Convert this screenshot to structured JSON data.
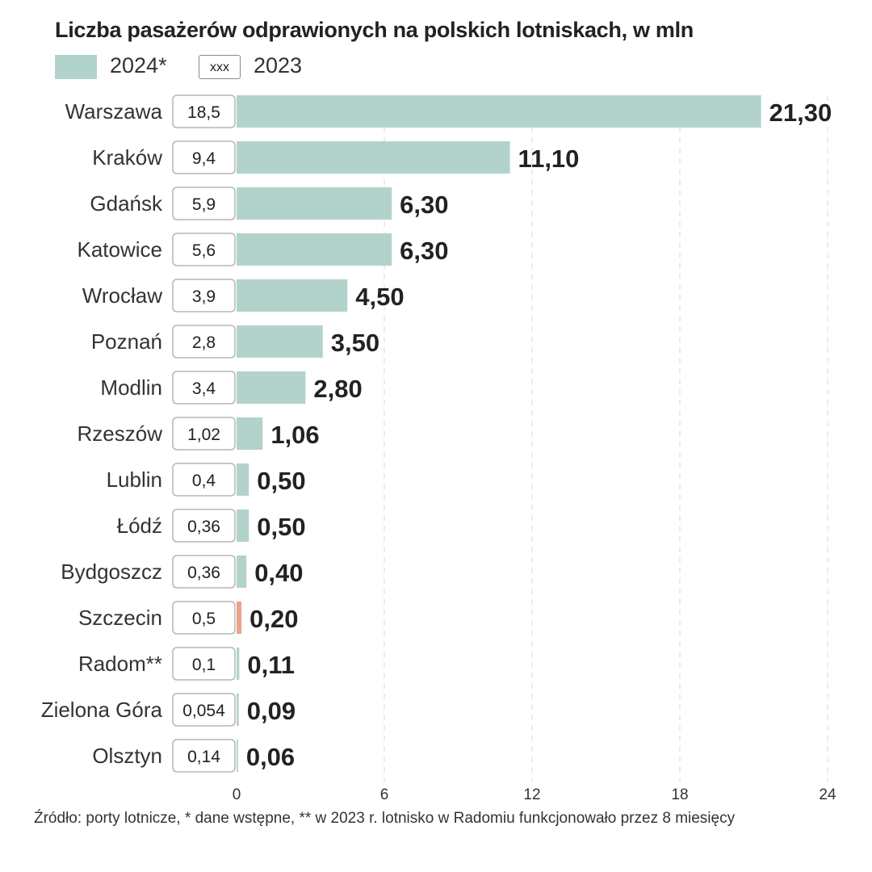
{
  "chart_data": {
    "type": "bar",
    "orientation": "horizontal",
    "title": "Liczba pasażerów odprawionych na  polskich lotniskach, w mln",
    "legend": {
      "series_2024_label": "2024*",
      "series_2023_label": "2023",
      "box_sample_text": "xxx"
    },
    "categories": [
      "Warszawa",
      "Kraków",
      "Gdańsk",
      "Katowice",
      "Wrocław",
      "Poznań",
      "Modlin",
      "Rzeszów",
      "Lublin",
      "Łódź",
      "Bydgoszcz",
      "Szczecin",
      "Radom**",
      "Zielona Góra",
      "Olsztyn"
    ],
    "series": [
      {
        "name": "2024*",
        "values": [
          21.3,
          11.1,
          6.3,
          6.3,
          4.5,
          3.5,
          2.8,
          1.06,
          0.5,
          0.5,
          0.4,
          0.2,
          0.11,
          0.09,
          0.06
        ],
        "labels": [
          "21,30",
          "11,10",
          "6,30",
          "6,30",
          "4,50",
          "3,50",
          "2,80",
          "1,06",
          "0,50",
          "0,50",
          "0,40",
          "0,20",
          "0,11",
          "0,09",
          "0,06"
        ]
      },
      {
        "name": "2023",
        "values": [
          18.5,
          9.4,
          5.9,
          5.6,
          3.9,
          2.8,
          3.4,
          1.02,
          0.4,
          0.36,
          0.36,
          0.5,
          0.1,
          0.054,
          0.14
        ],
        "labels": [
          "18,5",
          "9,4",
          "5,9",
          "5,6",
          "3,9",
          "2,8",
          "3,4",
          "1,02",
          "0,4",
          "0,36",
          "0,36",
          "0,5",
          "0,1",
          "0,054",
          "0,14"
        ]
      }
    ],
    "xlim": [
      0,
      24
    ],
    "xticks": [
      0,
      6,
      12,
      18,
      24
    ],
    "xtick_labels": [
      "0",
      "6",
      "12",
      "18",
      "24"
    ],
    "grid": "vertical dashed",
    "colors": {
      "bar_2024": "#b2d3cc",
      "szczecin_bar": "#e8a48c",
      "text": "#222222",
      "grid": "#d9d9d9"
    }
  },
  "source_note": "Źródło: porty lotnicze, * dane wstępne, ** w 2023 r. lotnisko w Radomiu  funkcjonowało przez 8 miesięcy"
}
